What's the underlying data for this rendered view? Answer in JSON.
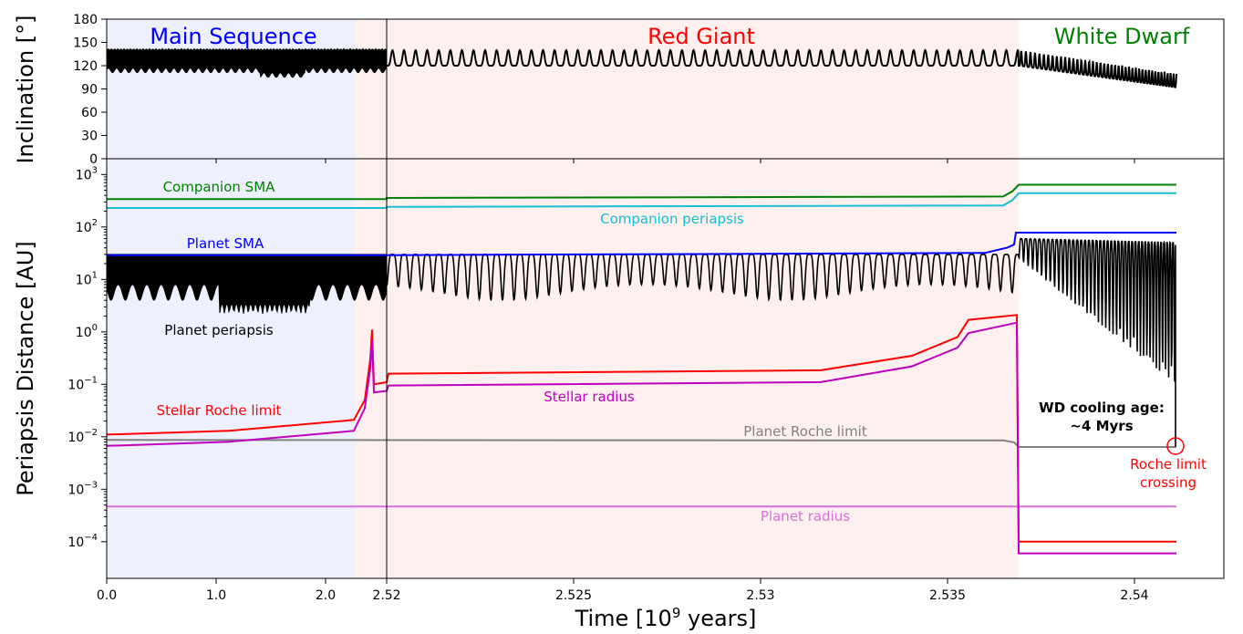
{
  "chart_data": [
    {
      "type": "line",
      "panel": "top",
      "ylabel": "Inclination [°]",
      "ylim": [
        0,
        180
      ],
      "yticks": [
        "0",
        "30",
        "60",
        "90",
        "120",
        "150",
        "180"
      ],
      "phases": [
        {
          "name": "Main Sequence",
          "color": "#0000ff",
          "shade": "#eef0fd",
          "x_start": 0.0,
          "x_end": 2.52,
          "label_x": 2.0
        },
        {
          "name": "Red Giant",
          "color": "#ff0000",
          "shade": "#fdf0ef",
          "x_start": 2.52,
          "x_end": 2.5365,
          "label_x": 2.527
        },
        {
          "name": "White Dwarf",
          "color": "#008000",
          "shade": "#ffffff",
          "x_start": 2.5365,
          "x_end": 2.542,
          "label_x": 2.5393
        }
      ],
      "series": [
        {
          "color": "#000000",
          "ms_band": [
            110,
            142
          ],
          "rg_base": 120,
          "rg_peak": 140,
          "wd_base_start": 120,
          "wd_base_end": 92,
          "wd_peak_end": 130
        }
      ]
    },
    {
      "type": "line",
      "panel": "bottom",
      "ylabel": "Periapsis Distance [AU]",
      "yscale": "log",
      "ylim": [
        2e-05,
        2000
      ],
      "yticks": [
        "10^-4",
        "10^-3",
        "10^-2",
        "10^-1",
        "10^0",
        "10^1",
        "10^2",
        "10^3"
      ],
      "xlabel": "Time [10^9 years]",
      "xticks": [
        "0.0",
        "1.0",
        "2.0",
        "2.52",
        "2.525",
        "2.53",
        "2.535",
        "2.54"
      ],
      "series": [
        {
          "name": "Companion SMA",
          "color": "#008000",
          "values_start": 340,
          "values_end": 640
        },
        {
          "name": "Companion periapsis",
          "color": "#17becf",
          "values_start": 230,
          "values_end": 440
        },
        {
          "name": "Planet SMA",
          "color": "#0000ff",
          "values_start": 29,
          "values_end": 78
        },
        {
          "name": "Planet periapsis",
          "color": "#000000",
          "ms_band": [
            2,
            30
          ],
          "rg_min": 3,
          "rg_max": 30
        },
        {
          "name": "Stellar Roche limit",
          "color": "#ff0000",
          "values_start": 0.011,
          "rg_value": 0.16,
          "peak": 2.1,
          "wd_value": 0.0001
        },
        {
          "name": "Stellar radius",
          "color": "#bf00bf",
          "values_start": 0.0067,
          "rg_value": 0.095,
          "peak": 1.5,
          "wd_value": 6e-05
        },
        {
          "name": "Planet Roche limit",
          "color": "#808080",
          "values_start": 0.0087,
          "wd_value": 0.0064
        },
        {
          "name": "Planet radius",
          "color": "#da70d6",
          "value": 0.00047
        }
      ],
      "annotations": {
        "wd_cooling_line1": "WD cooling age:",
        "wd_cooling_line2": "~4 Myrs",
        "roche_crossing_line1": "Roche limit",
        "roche_crossing_line2": "crossing"
      }
    }
  ]
}
